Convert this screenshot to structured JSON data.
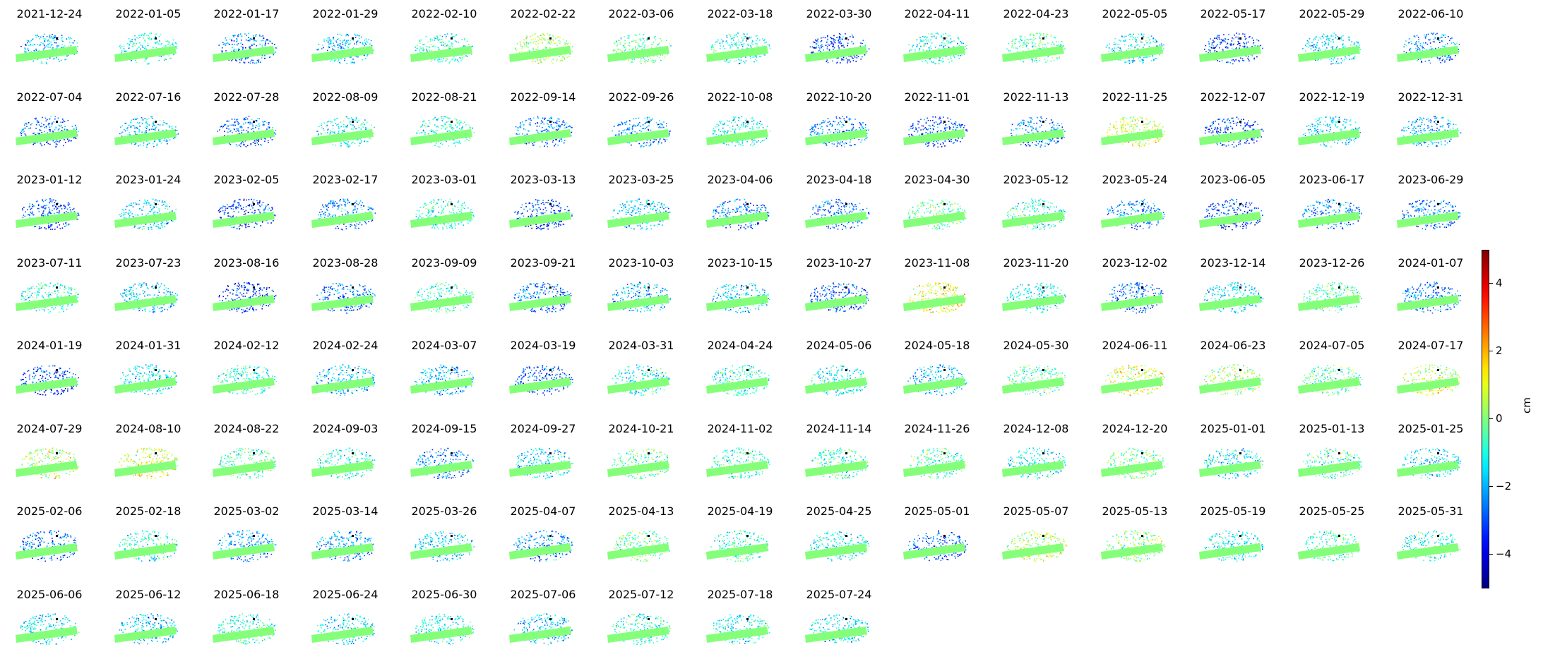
{
  "chart_data": {
    "type": "scatter",
    "panels": [
      "2021-12-24",
      "2022-01-05",
      "2022-01-17",
      "2022-01-29",
      "2022-02-10",
      "2022-02-22",
      "2022-03-06",
      "2022-03-18",
      "2022-03-30",
      "2022-04-11",
      "2022-04-23",
      "2022-05-05",
      "2022-05-17",
      "2022-05-29",
      "2022-06-10",
      "2022-07-04",
      "2022-07-16",
      "2022-07-28",
      "2022-08-09",
      "2022-08-21",
      "2022-09-14",
      "2022-09-26",
      "2022-10-08",
      "2022-10-20",
      "2022-11-01",
      "2022-11-13",
      "2022-11-25",
      "2022-12-07",
      "2022-12-19",
      "2022-12-31",
      "2023-01-12",
      "2023-01-24",
      "2023-02-05",
      "2023-02-17",
      "2023-03-01",
      "2023-03-13",
      "2023-03-25",
      "2023-04-06",
      "2023-04-18",
      "2023-04-30",
      "2023-05-12",
      "2023-05-24",
      "2023-06-05",
      "2023-06-17",
      "2023-06-29",
      "2023-07-11",
      "2023-07-23",
      "2023-08-16",
      "2023-08-28",
      "2023-09-09",
      "2023-09-21",
      "2023-10-03",
      "2023-10-15",
      "2023-10-27",
      "2023-11-08",
      "2023-11-20",
      "2023-12-02",
      "2023-12-14",
      "2023-12-26",
      "2024-01-07",
      "2024-01-19",
      "2024-01-31",
      "2024-02-12",
      "2024-02-24",
      "2024-03-07",
      "2024-03-19",
      "2024-03-31",
      "2024-04-24",
      "2024-05-06",
      "2024-05-18",
      "2024-05-30",
      "2024-06-11",
      "2024-06-23",
      "2024-07-05",
      "2024-07-17",
      "2024-07-29",
      "2024-08-10",
      "2024-08-22",
      "2024-09-03",
      "2024-09-15",
      "2024-09-27",
      "2024-10-21",
      "2024-11-02",
      "2024-11-14",
      "2024-11-26",
      "2024-12-08",
      "2024-12-20",
      "2025-01-01",
      "2025-01-13",
      "2025-01-25",
      "2025-02-06",
      "2025-02-18",
      "2025-03-02",
      "2025-03-14",
      "2025-03-26",
      "2025-04-07",
      "2025-04-13",
      "2025-04-19",
      "2025-04-25",
      "2025-05-01",
      "2025-05-07",
      "2025-05-13",
      "2025-05-19",
      "2025-05-25",
      "2025-05-31",
      "2025-06-06",
      "2025-06-12",
      "2025-06-18",
      "2025-06-24",
      "2025-06-30",
      "2025-07-06",
      "2025-07-12",
      "2025-07-18",
      "2025-07-24"
    ],
    "panel_mean_cm": [
      -1.8,
      -1.2,
      -2.6,
      -1.9,
      -1.0,
      0.3,
      -0.5,
      -1.3,
      -3.0,
      -1.2,
      -0.4,
      -1.5,
      -3.2,
      -1.5,
      -2.4,
      -2.8,
      -1.8,
      -2.7,
      -1.1,
      -1.0,
      -2.5,
      -2.2,
      -1.4,
      -2.4,
      -3.0,
      -2.3,
      0.8,
      -3.0,
      -1.6,
      -2.0,
      -2.9,
      -1.6,
      -3.1,
      -2.3,
      -1.0,
      -3.1,
      -1.8,
      -2.6,
      -2.6,
      -0.3,
      -0.8,
      -2.4,
      -3.2,
      -2.5,
      -2.6,
      -1.0,
      -1.8,
      -3.2,
      -2.6,
      -0.8,
      -2.6,
      -2.0,
      -1.7,
      -2.8,
      1.0,
      -1.2,
      -2.6,
      -1.6,
      -0.5,
      -2.6,
      -3.0,
      -1.5,
      -1.0,
      -1.9,
      -2.0,
      -3.0,
      -1.2,
      -0.8,
      -1.3,
      -1.8,
      -0.4,
      0.8,
      0.2,
      -0.5,
      0.6,
      0.4,
      0.8,
      -0.6,
      -0.9,
      -2.3,
      -1.5,
      -0.4,
      -0.9,
      -0.8,
      -0.6,
      -1.4,
      -0.2,
      -1.4,
      -0.6,
      -1.6,
      -2.8,
      -1.0,
      -2.2,
      -2.2,
      -1.6,
      -2.4,
      -0.3,
      -0.8,
      -1.1,
      -2.8,
      0.4,
      0.0,
      -1.2,
      -0.6,
      -1.0,
      -1.5,
      -1.8,
      -0.9,
      -1.5,
      -1.3,
      -1.8,
      -0.9,
      -1.2,
      -1.5
    ],
    "colorbar": {
      "label": "cm",
      "range": [
        -5,
        5
      ],
      "ticks": [
        -4,
        -2,
        0,
        2,
        4
      ],
      "ticklabels": [
        "−4",
        "−2",
        "0",
        "2",
        "4"
      ],
      "colormap": "jet"
    },
    "layout_cols": 15
  }
}
